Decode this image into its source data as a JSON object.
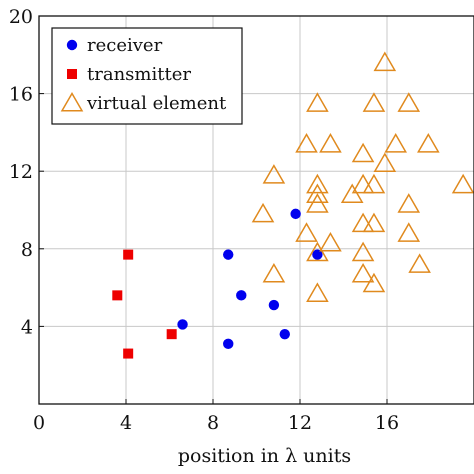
{
  "chart_data": {
    "type": "scatter",
    "xlabel": "position in λ units",
    "ylabel": "",
    "xlim": [
      0,
      20
    ],
    "ylim": [
      0,
      20
    ],
    "xticks": [
      0,
      4,
      8,
      12,
      16
    ],
    "yticks": [
      4,
      8,
      12,
      16,
      20
    ],
    "grid": true,
    "legend_position": "top-left",
    "series": [
      {
        "name": "receiver",
        "marker": "circle",
        "color": "#0000ee",
        "points": [
          [
            6.6,
            4.1
          ],
          [
            8.7,
            7.7
          ],
          [
            9.3,
            5.6
          ],
          [
            8.7,
            3.1
          ],
          [
            10.8,
            5.1
          ],
          [
            11.3,
            3.6
          ],
          [
            11.8,
            9.8
          ],
          [
            12.8,
            7.7
          ]
        ]
      },
      {
        "name": "transmitter",
        "marker": "square",
        "color": "#ee0000",
        "points": [
          [
            3.6,
            5.6
          ],
          [
            4.1,
            7.7
          ],
          [
            4.1,
            2.6
          ],
          [
            6.1,
            3.6
          ]
        ]
      },
      {
        "name": "virtual element",
        "marker": "triangle",
        "color": "#e08a1e",
        "points": [
          [
            15.9,
            17.6
          ],
          [
            12.8,
            15.5
          ],
          [
            15.4,
            15.5
          ],
          [
            17.0,
            15.5
          ],
          [
            12.3,
            13.4
          ],
          [
            13.4,
            13.4
          ],
          [
            16.4,
            13.4
          ],
          [
            17.9,
            13.4
          ],
          [
            14.9,
            12.9
          ],
          [
            15.9,
            12.4
          ],
          [
            10.8,
            11.8
          ],
          [
            12.8,
            11.3
          ],
          [
            14.9,
            11.3
          ],
          [
            15.4,
            11.3
          ],
          [
            19.5,
            11.3
          ],
          [
            12.8,
            10.8
          ],
          [
            14.4,
            10.8
          ],
          [
            12.8,
            10.3
          ],
          [
            17.0,
            10.3
          ],
          [
            10.3,
            9.8
          ],
          [
            14.9,
            9.3
          ],
          [
            15.4,
            9.3
          ],
          [
            12.3,
            8.8
          ],
          [
            17.0,
            8.8
          ],
          [
            13.4,
            8.3
          ],
          [
            12.8,
            7.8
          ],
          [
            14.9,
            7.8
          ],
          [
            17.5,
            7.2
          ],
          [
            10.8,
            6.7
          ],
          [
            14.9,
            6.7
          ],
          [
            15.4,
            6.2
          ],
          [
            12.8,
            5.7
          ]
        ]
      }
    ]
  }
}
